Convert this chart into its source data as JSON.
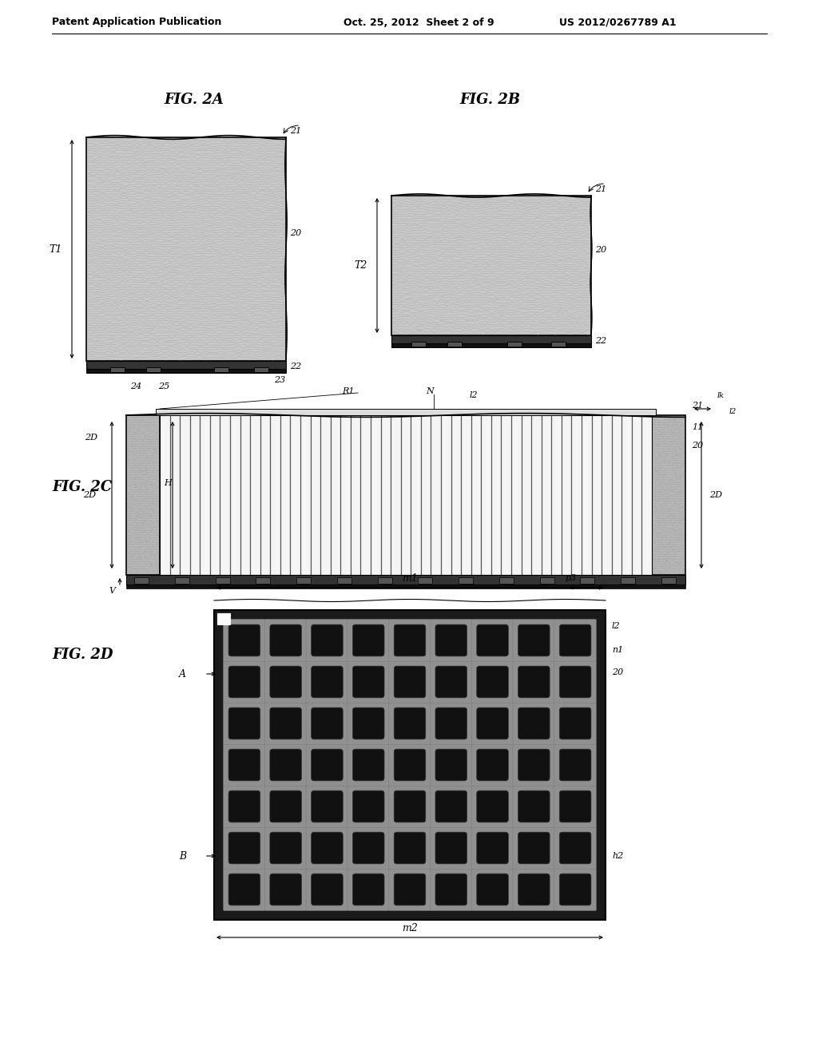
{
  "bg_color": "#ffffff",
  "header_text1": "Patent Application Publication",
  "header_text2": "Oct. 25, 2012  Sheet 2 of 9",
  "header_text3": "US 2012/0267789 A1",
  "fig2a_label": "FIG. 2A",
  "fig2b_label": "FIG. 2B",
  "fig2c_label": "FIG. 2C",
  "fig2d_label": "FIG. 2D",
  "body_color": "#c8c8c8",
  "dark_layer_color": "#222222",
  "via_line_color": "#444444",
  "sem_bg_color": "#1a1a1a",
  "sem_wall_color": "#888888",
  "sem_hole_color": "#111111"
}
